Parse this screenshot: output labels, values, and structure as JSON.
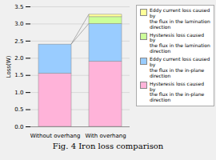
{
  "chart_data": {
    "type": "bar",
    "stacked": true,
    "title": "Fig. 4 Iron loss comparison",
    "ylabel": "Loss(W)",
    "categories": [
      "Without overhang",
      "With overhang"
    ],
    "series": [
      {
        "name": "Hysteresis loss caused by\nthe flux in the in-plane\ndirection",
        "color": "#FFB3D9",
        "values": [
          1.55,
          1.9
        ]
      },
      {
        "name": "Eddy current loss caused by\nthe flux in the in-plane\ndirection",
        "color": "#99CCFF",
        "values": [
          0.85,
          1.1
        ]
      },
      {
        "name": "Hysteresis loss caused by\nthe flux in the lamination\ndirection",
        "color": "#CCFF99",
        "values": [
          0.0,
          0.2
        ]
      },
      {
        "name": "Eddy current loss caused by\nthe flux in the lamination\ndirection",
        "color": "#FFFF99",
        "values": [
          0.0,
          0.07
        ]
      }
    ],
    "connector_lines": [
      [
        2.4,
        3.0
      ],
      [
        2.4,
        3.27
      ]
    ],
    "ylim": [
      0,
      3.5
    ],
    "yticks": [
      {
        "value": 0,
        "label": "0.0"
      },
      0.5,
      {
        "value": 1,
        "label": "1.0"
      },
      1.5,
      {
        "value": 2,
        "label": "2.0"
      },
      2.5,
      {
        "value": 3,
        "label": "3.0"
      },
      3.5
    ],
    "grid": true,
    "legend": "right"
  }
}
